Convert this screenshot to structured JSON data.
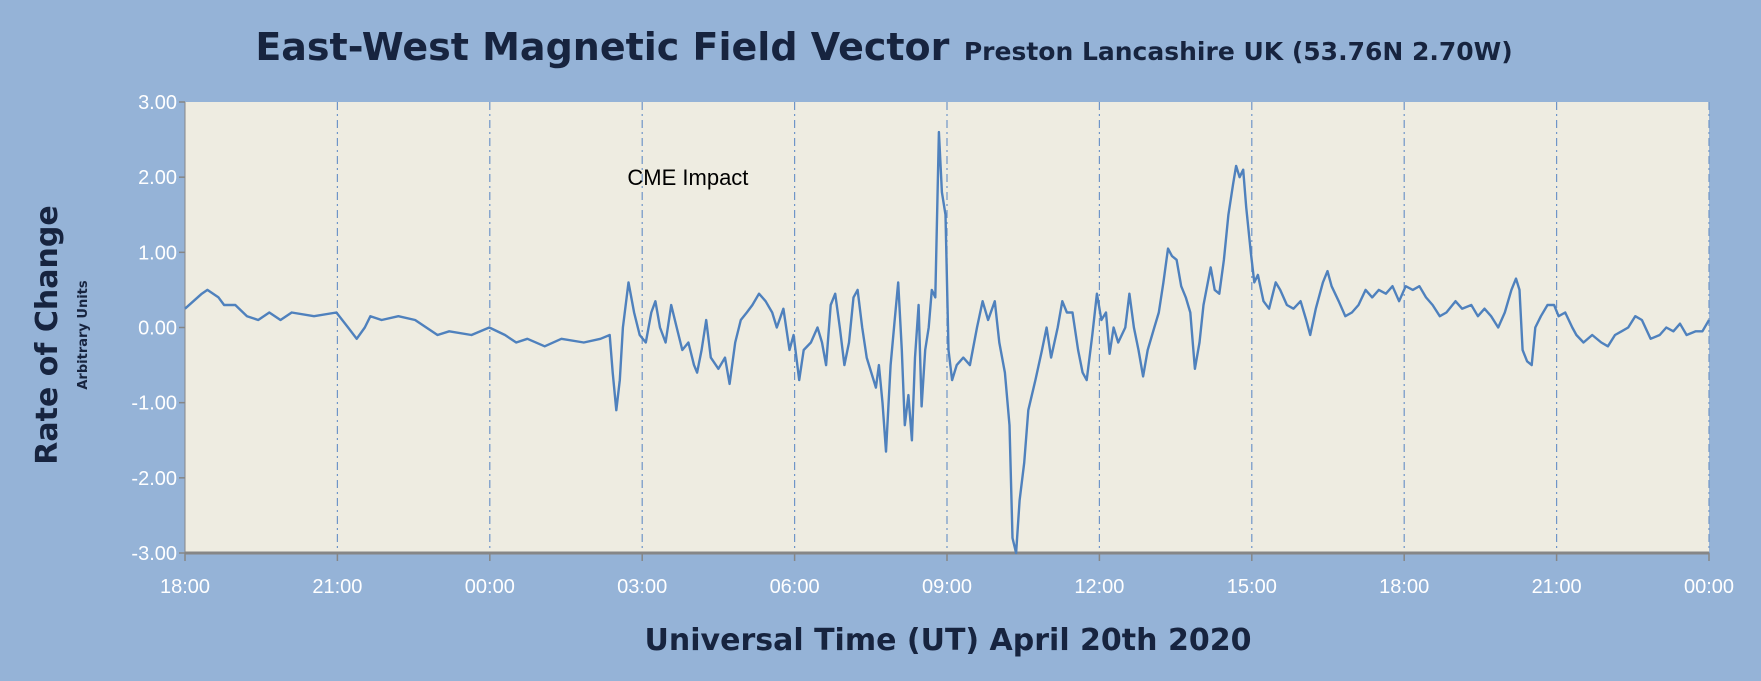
{
  "chart_data": {
    "type": "line",
    "title": "East-West Magnetic Field Vector",
    "subtitle": "Preston Lancashire UK (53.76N 2.70W)",
    "xlabel": "Universal Time (UT) April 20th  2020",
    "ylabel": "Rate of Change",
    "ylabel_sub": "Arbitrary Units",
    "xlim_hours": [
      0,
      30
    ],
    "ylim": [
      -3,
      3
    ],
    "grid": "vertical dash-dot every 3 hours",
    "x_ticks": [
      "18:00",
      "21:00",
      "00:00",
      "03:00",
      "06:00",
      "09:00",
      "12:00",
      "15:00",
      "18:00",
      "21:00",
      "00:00"
    ],
    "y_ticks": [
      "3.00",
      "2.00",
      "1.00",
      "0.00",
      "-1.00",
      "-2.00",
      "-3.00"
    ],
    "y_tick_values": [
      3,
      2,
      1,
      0,
      -1,
      -2,
      -3
    ],
    "annotation": {
      "text": "CME Impact",
      "x_hours": 9.9,
      "y": 2.0
    },
    "colors": {
      "background": "#95b3d7",
      "plot": "#eeece1",
      "line": "#4f81bd",
      "text": "#17243f"
    },
    "series": [
      {
        "name": "East-West",
        "x_hours": [
          0,
          0.33,
          0.44,
          0.66,
          0.77,
          0.99,
          1.22,
          1.44,
          1.66,
          1.88,
          2.1,
          2.54,
          2.98,
          3.21,
          3.38,
          3.54,
          3.65,
          3.87,
          4.2,
          4.53,
          4.75,
          4.97,
          5.2,
          5.64,
          5.99,
          6.3,
          6.52,
          6.74,
          7.08,
          7.41,
          7.85,
          8.18,
          8.36,
          8.42,
          8.49,
          8.56,
          8.62,
          8.73,
          8.84,
          8.95,
          9.07,
          9.18,
          9.26,
          9.35,
          9.46,
          9.57,
          9.68,
          9.79,
          9.91,
          10.02,
          10.08,
          10.17,
          10.26,
          10.35,
          10.5,
          10.63,
          10.72,
          10.83,
          10.94,
          11.06,
          11.17,
          11.3,
          11.43,
          11.56,
          11.65,
          11.78,
          11.9,
          11.98,
          12.09,
          12.18,
          12.32,
          12.45,
          12.54,
          12.62,
          12.71,
          12.8,
          12.89,
          12.98,
          13.07,
          13.16,
          13.24,
          13.33,
          13.42,
          13.51,
          13.6,
          13.66,
          13.73,
          13.8,
          13.89,
          13.97,
          14.04,
          14.11,
          14.17,
          14.24,
          14.31,
          14.37,
          14.44,
          14.5,
          14.57,
          14.64,
          14.7,
          14.77,
          14.84,
          14.9,
          14.97,
          15.03,
          15.1,
          15.19,
          15.32,
          15.45,
          15.59,
          15.7,
          15.81,
          15.94,
          16.03,
          16.14,
          16.23,
          16.29,
          16.36,
          16.43,
          16.52,
          16.6,
          16.74,
          16.87,
          16.96,
          17.05,
          17.18,
          17.27,
          17.36,
          17.47,
          17.58,
          17.67,
          17.75,
          17.86,
          17.95,
          18.04,
          18.13,
          18.2,
          18.28,
          18.37,
          18.51,
          18.59,
          18.68,
          18.77,
          18.86,
          18.95,
          19.08,
          19.17,
          19.26,
          19.35,
          19.43,
          19.52,
          19.61,
          19.7,
          19.79,
          19.88,
          19.97,
          20.05,
          20.19,
          20.27,
          20.36,
          20.45,
          20.54,
          20.63,
          20.69,
          20.76,
          20.83,
          20.89,
          20.98,
          21.05,
          21.12,
          21.23,
          21.34,
          21.47,
          21.56,
          21.69,
          21.82,
          21.96,
          22.07,
          22.15,
          22.26,
          22.4,
          22.49,
          22.57,
          22.71,
          22.84,
          22.97,
          23.1,
          23.24,
          23.37,
          23.5,
          23.64,
          23.77,
          23.9,
          24.03,
          24.17,
          24.3,
          24.43,
          24.56,
          24.7,
          24.83,
          25.01,
          25.14,
          25.32,
          25.45,
          25.58,
          25.71,
          25.85,
          25.98,
          26.11,
          26.2,
          26.27,
          26.33,
          26.42,
          26.51,
          26.58,
          26.69,
          26.82,
          26.95,
          27.04,
          27.17,
          27.31,
          27.39,
          27.53,
          27.7,
          27.88,
          28.01,
          28.15,
          28.28,
          28.41,
          28.55,
          28.68,
          28.85,
          29.03,
          29.16,
          29.3,
          29.43,
          29.56,
          29.74,
          29.87,
          30.0
        ],
        "y": [
          0.25,
          0.45,
          0.5,
          0.4,
          0.3,
          0.3,
          0.15,
          0.1,
          0.2,
          0.1,
          0.2,
          0.15,
          0.2,
          0.0,
          -0.15,
          0.0,
          0.15,
          0.1,
          0.15,
          0.1,
          0.0,
          -0.1,
          -0.05,
          -0.1,
          0.0,
          -0.1,
          -0.2,
          -0.15,
          -0.25,
          -0.15,
          -0.2,
          -0.15,
          -0.1,
          -0.6,
          -1.1,
          -0.7,
          0.0,
          0.6,
          0.2,
          -0.1,
          -0.2,
          0.2,
          0.35,
          0.0,
          -0.2,
          0.3,
          0.0,
          -0.3,
          -0.2,
          -0.5,
          -0.6,
          -0.3,
          0.1,
          -0.4,
          -0.55,
          -0.4,
          -0.75,
          -0.2,
          0.1,
          0.2,
          0.3,
          0.45,
          0.35,
          0.2,
          0.0,
          0.25,
          -0.3,
          -0.1,
          -0.7,
          -0.3,
          -0.2,
          0.0,
          -0.2,
          -0.5,
          0.3,
          0.45,
          0.0,
          -0.5,
          -0.2,
          0.4,
          0.5,
          0.0,
          -0.4,
          -0.6,
          -0.8,
          -0.5,
          -1.0,
          -1.65,
          -0.5,
          0.1,
          0.6,
          -0.3,
          -1.3,
          -0.9,
          -1.5,
          -0.4,
          0.3,
          -1.05,
          -0.3,
          0.0,
          0.5,
          0.4,
          2.6,
          1.8,
          1.5,
          -0.3,
          -0.7,
          -0.5,
          -0.4,
          -0.5,
          0.0,
          0.35,
          0.1,
          0.35,
          -0.2,
          -0.6,
          -1.3,
          -2.8,
          -3.0,
          -2.3,
          -1.8,
          -1.1,
          -0.7,
          -0.3,
          0.0,
          -0.4,
          0.0,
          0.35,
          0.2,
          0.2,
          -0.3,
          -0.6,
          -0.7,
          -0.1,
          0.45,
          0.1,
          0.2,
          -0.35,
          0.0,
          -0.2,
          0.0,
          0.45,
          0.0,
          -0.3,
          -0.65,
          -0.3,
          0.0,
          0.2,
          0.6,
          1.05,
          0.95,
          0.9,
          0.55,
          0.4,
          0.2,
          -0.55,
          -0.2,
          0.3,
          0.8,
          0.5,
          0.45,
          0.9,
          1.5,
          1.9,
          2.15,
          2.0,
          2.1,
          1.6,
          1.0,
          0.6,
          0.7,
          0.35,
          0.25,
          0.6,
          0.5,
          0.3,
          0.25,
          0.35,
          0.1,
          -0.1,
          0.25,
          0.6,
          0.75,
          0.55,
          0.35,
          0.15,
          0.2,
          0.3,
          0.5,
          0.4,
          0.5,
          0.45,
          0.55,
          0.35,
          0.55,
          0.5,
          0.55,
          0.4,
          0.3,
          0.15,
          0.2,
          0.35,
          0.25,
          0.3,
          0.15,
          0.25,
          0.15,
          0.0,
          0.2,
          0.5,
          0.65,
          0.5,
          -0.3,
          -0.45,
          -0.5,
          0.0,
          0.15,
          0.3,
          0.3,
          0.15,
          0.2,
          0.0,
          -0.1,
          -0.2,
          -0.1,
          -0.2,
          -0.25,
          -0.1,
          -0.05,
          0.0,
          0.15,
          0.1,
          -0.15,
          -0.1,
          0.0,
          -0.05,
          0.05,
          -0.1,
          -0.05,
          -0.05,
          0.1
        ]
      }
    ]
  }
}
